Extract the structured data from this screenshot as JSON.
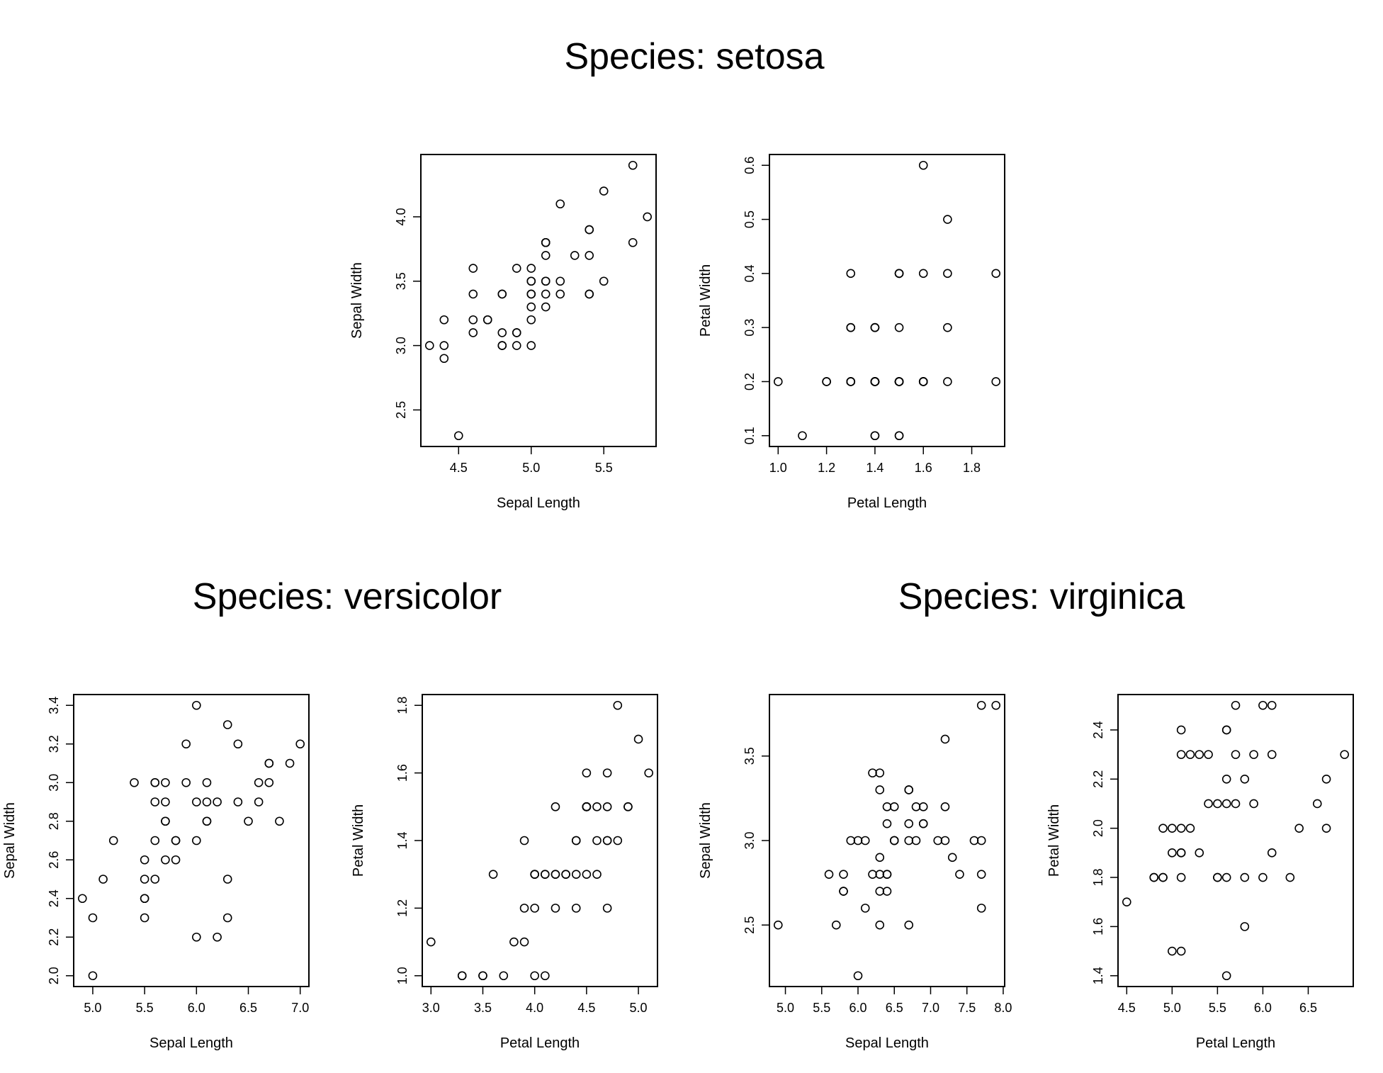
{
  "species_titles": {
    "setosa": "Species: setosa",
    "versicolor": "Species: versicolor",
    "virginica": "Species: virginica"
  },
  "colors": {
    "ink": "#000000",
    "background": "#ffffff"
  },
  "chart_data": [
    {
      "id": "setosa-sepal",
      "type": "scatter",
      "species": "setosa",
      "xlabel": "Sepal Length",
      "ylabel": "Sepal Width",
      "xlim": [
        4.3,
        5.8
      ],
      "ylim": [
        2.3,
        4.4
      ],
      "xticks": [
        "4.5",
        "5.0",
        "5.5"
      ],
      "yticks": [
        "2.5",
        "3.0",
        "3.5",
        "4.0"
      ],
      "x": [
        5.1,
        4.9,
        4.7,
        4.6,
        5.0,
        5.4,
        4.6,
        5.0,
        4.4,
        4.9,
        5.4,
        4.8,
        4.8,
        4.3,
        5.8,
        5.7,
        5.4,
        5.1,
        5.7,
        5.1,
        5.4,
        5.1,
        4.6,
        5.1,
        4.8,
        5.0,
        5.0,
        5.2,
        5.2,
        4.7,
        4.8,
        5.4,
        5.2,
        5.5,
        4.9,
        5.0,
        5.5,
        4.9,
        4.4,
        5.1,
        5.0,
        4.5,
        4.4,
        5.0,
        5.1,
        4.8,
        5.1,
        4.6,
        5.3,
        5.0
      ],
      "y": [
        3.5,
        3.0,
        3.2,
        3.1,
        3.6,
        3.9,
        3.4,
        3.4,
        2.9,
        3.1,
        3.7,
        3.4,
        3.0,
        3.0,
        4.0,
        4.4,
        3.9,
        3.5,
        3.8,
        3.8,
        3.4,
        3.7,
        3.6,
        3.3,
        3.4,
        3.0,
        3.4,
        3.5,
        3.4,
        3.2,
        3.1,
        3.4,
        4.1,
        4.2,
        3.1,
        3.2,
        3.5,
        3.6,
        3.0,
        3.4,
        3.5,
        2.3,
        3.2,
        3.5,
        3.8,
        3.0,
        3.8,
        3.2,
        3.7,
        3.3
      ]
    },
    {
      "id": "setosa-petal",
      "type": "scatter",
      "species": "setosa",
      "xlabel": "Petal Length",
      "ylabel": "Petal Width",
      "xlim": [
        1.0,
        1.9
      ],
      "ylim": [
        0.1,
        0.6
      ],
      "xticks": [
        "1.0",
        "1.2",
        "1.4",
        "1.6",
        "1.8"
      ],
      "yticks": [
        "0.1",
        "0.2",
        "0.3",
        "0.4",
        "0.5",
        "0.6"
      ],
      "x": [
        1.4,
        1.4,
        1.3,
        1.5,
        1.4,
        1.7,
        1.4,
        1.5,
        1.4,
        1.5,
        1.5,
        1.6,
        1.4,
        1.1,
        1.2,
        1.5,
        1.3,
        1.4,
        1.7,
        1.5,
        1.7,
        1.5,
        1.0,
        1.7,
        1.9,
        1.6,
        1.6,
        1.5,
        1.4,
        1.6,
        1.6,
        1.5,
        1.5,
        1.4,
        1.5,
        1.2,
        1.3,
        1.4,
        1.3,
        1.5,
        1.3,
        1.3,
        1.3,
        1.6,
        1.9,
        1.4,
        1.6,
        1.4,
        1.5,
        1.4
      ],
      "y": [
        0.2,
        0.2,
        0.2,
        0.2,
        0.2,
        0.4,
        0.3,
        0.2,
        0.2,
        0.1,
        0.2,
        0.2,
        0.1,
        0.1,
        0.2,
        0.4,
        0.4,
        0.3,
        0.3,
        0.3,
        0.2,
        0.4,
        0.2,
        0.5,
        0.2,
        0.2,
        0.4,
        0.2,
        0.2,
        0.2,
        0.2,
        0.4,
        0.1,
        0.2,
        0.2,
        0.2,
        0.2,
        0.1,
        0.2,
        0.2,
        0.3,
        0.3,
        0.2,
        0.6,
        0.4,
        0.3,
        0.2,
        0.2,
        0.2,
        0.2
      ]
    },
    {
      "id": "versicolor-sepal",
      "type": "scatter",
      "species": "versicolor",
      "xlabel": "Sepal Length",
      "ylabel": "Sepal Width",
      "xlim": [
        4.9,
        7.0
      ],
      "ylim": [
        2.0,
        3.4
      ],
      "xticks": [
        "5.0",
        "5.5",
        "6.0",
        "6.5",
        "7.0"
      ],
      "yticks": [
        "2.0",
        "2.2",
        "2.4",
        "2.6",
        "2.8",
        "3.0",
        "3.2",
        "3.4"
      ],
      "x": [
        7.0,
        6.4,
        6.9,
        5.5,
        6.5,
        5.7,
        6.3,
        4.9,
        6.6,
        5.2,
        5.0,
        5.9,
        6.0,
        6.1,
        5.6,
        6.7,
        5.6,
        5.8,
        6.2,
        5.6,
        5.9,
        6.1,
        6.3,
        6.1,
        6.4,
        6.6,
        6.8,
        6.7,
        6.0,
        5.7,
        5.5,
        5.5,
        5.8,
        6.0,
        5.4,
        6.0,
        6.7,
        6.3,
        5.6,
        5.5,
        5.5,
        6.1,
        5.8,
        5.0,
        5.6,
        5.7,
        5.7,
        6.2,
        5.1,
        5.7
      ],
      "y": [
        3.2,
        3.2,
        3.1,
        2.3,
        2.8,
        2.8,
        3.3,
        2.4,
        2.9,
        2.7,
        2.0,
        3.0,
        2.2,
        2.9,
        2.9,
        3.1,
        3.0,
        2.7,
        2.2,
        2.5,
        3.2,
        2.8,
        2.5,
        2.8,
        2.9,
        3.0,
        2.8,
        3.0,
        2.9,
        2.6,
        2.4,
        2.4,
        2.7,
        2.7,
        3.0,
        3.4,
        3.1,
        2.3,
        3.0,
        2.5,
        2.6,
        3.0,
        2.6,
        2.3,
        2.7,
        3.0,
        2.9,
        2.9,
        2.5,
        2.8
      ]
    },
    {
      "id": "versicolor-petal",
      "type": "scatter",
      "species": "versicolor",
      "xlabel": "Petal Length",
      "ylabel": "Petal Width",
      "xlim": [
        3.0,
        5.1
      ],
      "ylim": [
        1.0,
        1.8
      ],
      "xticks": [
        "3.0",
        "3.5",
        "4.0",
        "4.5",
        "5.0"
      ],
      "yticks": [
        "1.0",
        "1.2",
        "1.4",
        "1.6",
        "1.8"
      ],
      "x": [
        4.7,
        4.5,
        4.9,
        4.0,
        4.6,
        4.5,
        4.7,
        3.3,
        4.6,
        3.9,
        3.5,
        4.2,
        4.0,
        4.7,
        3.6,
        4.4,
        4.5,
        4.1,
        4.5,
        3.9,
        4.8,
        4.0,
        4.9,
        4.7,
        4.3,
        4.4,
        4.8,
        5.0,
        4.5,
        3.5,
        3.8,
        3.7,
        3.9,
        5.1,
        4.5,
        4.5,
        4.7,
        4.4,
        4.1,
        4.0,
        4.4,
        4.6,
        4.0,
        3.3,
        4.2,
        4.2,
        4.2,
        4.3,
        3.0,
        4.1
      ],
      "y": [
        1.4,
        1.5,
        1.5,
        1.3,
        1.5,
        1.3,
        1.6,
        1.0,
        1.3,
        1.4,
        1.0,
        1.5,
        1.0,
        1.4,
        1.3,
        1.4,
        1.5,
        1.0,
        1.5,
        1.1,
        1.8,
        1.3,
        1.5,
        1.2,
        1.3,
        1.4,
        1.4,
        1.7,
        1.5,
        1.0,
        1.1,
        1.0,
        1.2,
        1.6,
        1.5,
        1.6,
        1.5,
        1.3,
        1.3,
        1.3,
        1.2,
        1.4,
        1.2,
        1.0,
        1.3,
        1.2,
        1.3,
        1.3,
        1.1,
        1.3
      ]
    },
    {
      "id": "virginica-sepal",
      "type": "scatter",
      "species": "virginica",
      "xlabel": "Sepal Length",
      "ylabel": "Sepal Width",
      "xlim": [
        4.9,
        7.9
      ],
      "ylim": [
        2.2,
        3.8
      ],
      "xticks": [
        "5.0",
        "5.5",
        "6.0",
        "6.5",
        "7.0",
        "7.5",
        "8.0"
      ],
      "yticks": [
        "2.5",
        "3.0",
        "3.5"
      ],
      "x": [
        6.3,
        5.8,
        7.1,
        6.3,
        6.5,
        7.6,
        4.9,
        7.3,
        6.7,
        7.2,
        6.5,
        6.4,
        6.8,
        5.7,
        5.8,
        6.4,
        6.5,
        7.7,
        7.7,
        6.0,
        6.9,
        5.6,
        7.7,
        6.3,
        6.7,
        7.2,
        6.2,
        6.1,
        6.4,
        7.2,
        7.4,
        7.9,
        6.4,
        6.3,
        6.1,
        7.7,
        6.3,
        6.4,
        6.0,
        6.9,
        6.7,
        6.9,
        5.8,
        6.8,
        6.7,
        6.7,
        6.3,
        6.5,
        6.2,
        5.9
      ],
      "y": [
        3.3,
        2.7,
        3.0,
        2.9,
        3.0,
        3.0,
        2.5,
        2.9,
        2.5,
        3.6,
        3.2,
        2.7,
        3.0,
        2.5,
        2.8,
        3.2,
        3.0,
        3.8,
        2.6,
        2.2,
        3.2,
        2.8,
        2.8,
        2.7,
        3.3,
        3.2,
        2.8,
        3.0,
        2.8,
        3.0,
        2.8,
        3.8,
        2.8,
        2.8,
        2.6,
        3.0,
        3.4,
        3.1,
        3.0,
        3.1,
        3.1,
        3.1,
        2.7,
        3.2,
        3.3,
        3.0,
        2.5,
        3.0,
        3.4,
        3.0
      ]
    },
    {
      "id": "virginica-petal",
      "type": "scatter",
      "species": "virginica",
      "xlabel": "Petal Length",
      "ylabel": "Petal Width",
      "xlim": [
        4.5,
        6.9
      ],
      "ylim": [
        1.4,
        2.5
      ],
      "xticks": [
        "4.5",
        "5.0",
        "5.5",
        "6.0",
        "6.5"
      ],
      "yticks": [
        "1.4",
        "1.6",
        "1.8",
        "2.0",
        "2.2",
        "2.4"
      ],
      "x": [
        6.0,
        5.1,
        5.9,
        5.6,
        5.8,
        6.6,
        4.5,
        6.3,
        5.8,
        6.1,
        5.1,
        5.3,
        5.5,
        5.0,
        5.1,
        5.3,
        5.5,
        6.7,
        6.9,
        5.0,
        5.7,
        4.9,
        6.7,
        4.9,
        5.7,
        6.0,
        4.8,
        4.9,
        5.6,
        5.8,
        6.1,
        6.4,
        5.6,
        5.1,
        5.6,
        6.1,
        5.6,
        5.5,
        4.8,
        5.4,
        5.6,
        5.1,
        5.1,
        5.9,
        5.7,
        5.2,
        5.0,
        5.2,
        5.4,
        5.1
      ],
      "y": [
        2.5,
        1.9,
        2.1,
        1.8,
        2.2,
        2.1,
        1.7,
        1.8,
        1.8,
        2.5,
        2.0,
        1.9,
        2.1,
        2.0,
        2.4,
        2.3,
        1.8,
        2.2,
        2.3,
        1.5,
        2.3,
        2.0,
        2.0,
        1.8,
        2.1,
        1.8,
        1.8,
        1.8,
        2.1,
        1.6,
        1.9,
        2.0,
        2.2,
        1.5,
        1.4,
        2.3,
        2.4,
        1.8,
        1.8,
        2.1,
        2.4,
        2.3,
        1.9,
        2.3,
        2.5,
        2.3,
        1.9,
        2.0,
        2.3,
        1.8
      ]
    }
  ]
}
